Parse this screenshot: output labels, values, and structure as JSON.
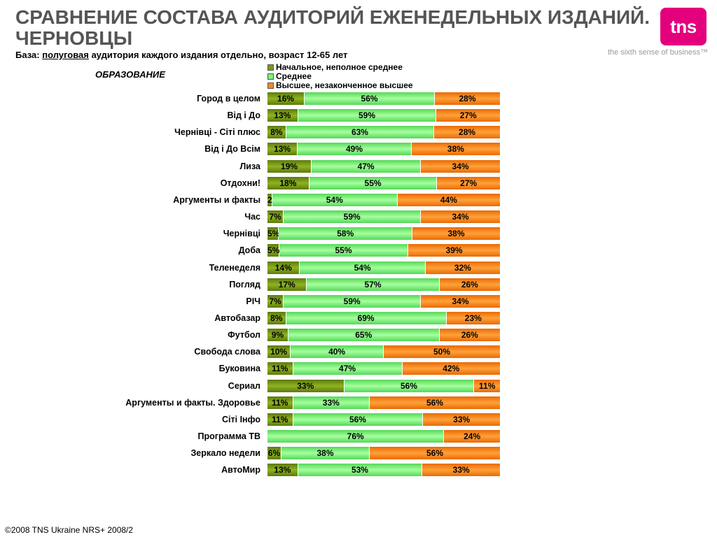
{
  "header": {
    "title": "СРАВНЕНИЕ СОСТАВА АУДИТОРИЙ ЕЖЕНЕДЕЛЬНЫХ ИЗДАНИЙ. ЧЕРНОВЦЫ",
    "logo_text": "tns",
    "tagline": "the sixth sense of business™",
    "base_label": "База:",
    "base_underlined": "полуговая",
    "base_rest": "аудитория каждого издания отдельно, возраст 12-65 лет",
    "section": "ОБРАЗОВАНИЕ"
  },
  "footer": {
    "text": "©2008 TNS Ukraine  NRS+ 2008/2"
  },
  "colors": {
    "primary": "#7a9a14",
    "secondary": "#7cf07c",
    "higher": "#f58a1f",
    "logo": "#e4007c"
  },
  "chart_data": {
    "type": "bar",
    "stacked": true,
    "orientation": "horizontal",
    "unit": "%",
    "xlim": [
      0,
      100
    ],
    "legend": {
      "placement": "top"
    },
    "categories": [
      "Город в целом",
      "Від і До",
      "Чернівці - Сіті плюс",
      "Від і До Всім",
      "Лиза",
      "Отдохни!",
      "Аргументы и факты",
      "Час",
      "Чернівці",
      "Доба",
      "Теленеделя",
      "Погляд",
      "РІЧ",
      "Автобазар",
      "Футбол",
      "Свобода слова",
      "Буковина",
      "Сериал",
      "Аргументы и факты. Здоровье",
      "Сіті Інфо",
      "Программа ТВ",
      "Зеркало недели",
      "АвтоМир"
    ],
    "series": [
      {
        "name": "Начальное, неполное среднее",
        "key": "primary",
        "values": [
          16,
          13,
          8,
          13,
          19,
          18,
          2,
          7,
          5,
          5,
          14,
          17,
          7,
          8,
          9,
          10,
          11,
          33,
          11,
          11,
          null,
          6,
          13
        ]
      },
      {
        "name": "Среднее",
        "key": "secondary",
        "values": [
          56,
          59,
          63,
          49,
          47,
          55,
          54,
          59,
          58,
          55,
          54,
          57,
          59,
          69,
          65,
          40,
          47,
          56,
          33,
          56,
          76,
          38,
          53
        ]
      },
      {
        "name": "Высшее, незаконченное высшее",
        "key": "higher",
        "values": [
          28,
          27,
          28,
          38,
          34,
          27,
          44,
          34,
          38,
          39,
          32,
          26,
          34,
          23,
          26,
          50,
          42,
          11,
          56,
          33,
          24,
          56,
          33
        ]
      }
    ]
  }
}
